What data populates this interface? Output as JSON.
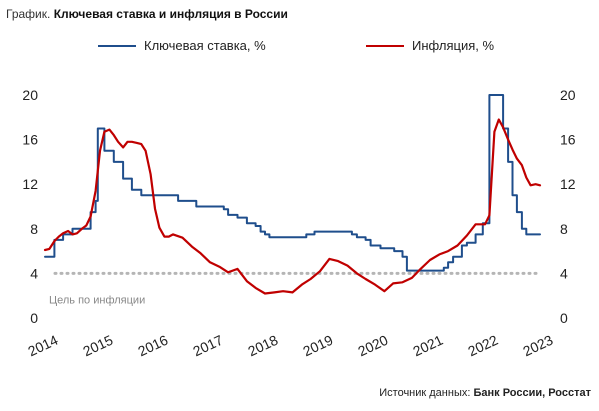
{
  "caption": {
    "prefix": "График.",
    "title": "Ключевая ставка и инфляция в России"
  },
  "source": {
    "prefix": "Источник данных:",
    "names": "Банк России, Росстат"
  },
  "colors": {
    "key_rate": "#1f4e8c",
    "inflation": "#c00000",
    "target": "#b5b5b5"
  },
  "chart_data": {
    "type": "line",
    "title": "Ключевая ставка и инфляция в России",
    "ylim": [
      0,
      20
    ],
    "yticks": [
      "0",
      "4",
      "8",
      "12",
      "16",
      "20"
    ],
    "xticks": [
      "2014",
      "2015",
      "2016",
      "2017",
      "2018",
      "2019",
      "2020",
      "2021",
      "2022",
      "2023"
    ],
    "grid": false,
    "legend_position": "top",
    "target": {
      "value": 4,
      "label": "Цель по инфляции"
    },
    "series": [
      {
        "name": "Ключевая ставка, %",
        "style": "step",
        "x": [
          2014.0,
          2014.17,
          2014.33,
          2014.5,
          2014.83,
          2014.92,
          2014.96,
          2015.08,
          2015.25,
          2015.42,
          2015.58,
          2015.75,
          2016.42,
          2016.75,
          2017.25,
          2017.33,
          2017.5,
          2017.67,
          2017.83,
          2017.92,
          2018.0,
          2018.08,
          2018.2,
          2018.5,
          2018.75,
          2018.9,
          2019.0,
          2019.5,
          2019.58,
          2019.67,
          2019.83,
          2019.92,
          2020.1,
          2020.35,
          2020.5,
          2020.58,
          2021.25,
          2021.33,
          2021.42,
          2021.58,
          2021.67,
          2021.83,
          2021.96,
          2022.08,
          2022.33,
          2022.42,
          2022.5,
          2022.58,
          2022.67,
          2022.75,
          2023.0
        ],
        "values": [
          5.5,
          7.0,
          7.5,
          8.0,
          9.5,
          10.5,
          17.0,
          15.0,
          14.0,
          12.5,
          11.5,
          11.0,
          10.5,
          10.0,
          9.75,
          9.25,
          9.0,
          8.5,
          8.25,
          7.75,
          7.5,
          7.25,
          7.25,
          7.25,
          7.5,
          7.75,
          7.75,
          7.75,
          7.5,
          7.25,
          7.0,
          6.5,
          6.25,
          6.0,
          5.5,
          4.25,
          4.5,
          5.0,
          5.5,
          6.5,
          6.75,
          7.5,
          8.5,
          20.0,
          17.0,
          14.0,
          11.0,
          9.5,
          8.0,
          7.5,
          7.5
        ]
      },
      {
        "name": "Инфляция, %",
        "style": "line",
        "x": [
          2014.0,
          2014.08,
          2014.17,
          2014.25,
          2014.33,
          2014.42,
          2014.5,
          2014.58,
          2014.67,
          2014.75,
          2014.83,
          2014.92,
          2015.0,
          2015.08,
          2015.17,
          2015.25,
          2015.33,
          2015.42,
          2015.5,
          2015.58,
          2015.67,
          2015.75,
          2015.83,
          2015.92,
          2016.0,
          2016.08,
          2016.17,
          2016.25,
          2016.33,
          2016.5,
          2016.67,
          2016.83,
          2017.0,
          2017.17,
          2017.33,
          2017.5,
          2017.67,
          2017.83,
          2018.0,
          2018.17,
          2018.33,
          2018.5,
          2018.67,
          2018.83,
          2019.0,
          2019.17,
          2019.33,
          2019.5,
          2019.67,
          2019.83,
          2020.0,
          2020.17,
          2020.33,
          2020.5,
          2020.67,
          2020.83,
          2021.0,
          2021.17,
          2021.33,
          2021.5,
          2021.67,
          2021.83,
          2022.0,
          2022.08,
          2022.17,
          2022.25,
          2022.33,
          2022.42,
          2022.5,
          2022.58,
          2022.67,
          2022.75,
          2022.83,
          2022.92,
          2023.0
        ],
        "values": [
          6.1,
          6.2,
          6.9,
          7.3,
          7.6,
          7.8,
          7.5,
          7.6,
          8.0,
          8.3,
          9.1,
          11.4,
          15.0,
          16.7,
          16.9,
          16.4,
          15.8,
          15.3,
          15.8,
          15.8,
          15.7,
          15.6,
          15.0,
          12.9,
          9.8,
          8.1,
          7.3,
          7.3,
          7.5,
          7.2,
          6.4,
          5.8,
          5.0,
          4.6,
          4.1,
          4.4,
          3.3,
          2.7,
          2.2,
          2.3,
          2.4,
          2.3,
          3.0,
          3.5,
          4.2,
          5.3,
          5.1,
          4.7,
          4.0,
          3.5,
          3.0,
          2.4,
          3.1,
          3.2,
          3.6,
          4.4,
          5.2,
          5.7,
          6.0,
          6.5,
          7.4,
          8.4,
          8.4,
          9.2,
          16.7,
          17.8,
          17.1,
          16.0,
          15.1,
          14.3,
          13.7,
          12.6,
          11.9,
          12.0,
          11.9
        ]
      }
    ]
  }
}
